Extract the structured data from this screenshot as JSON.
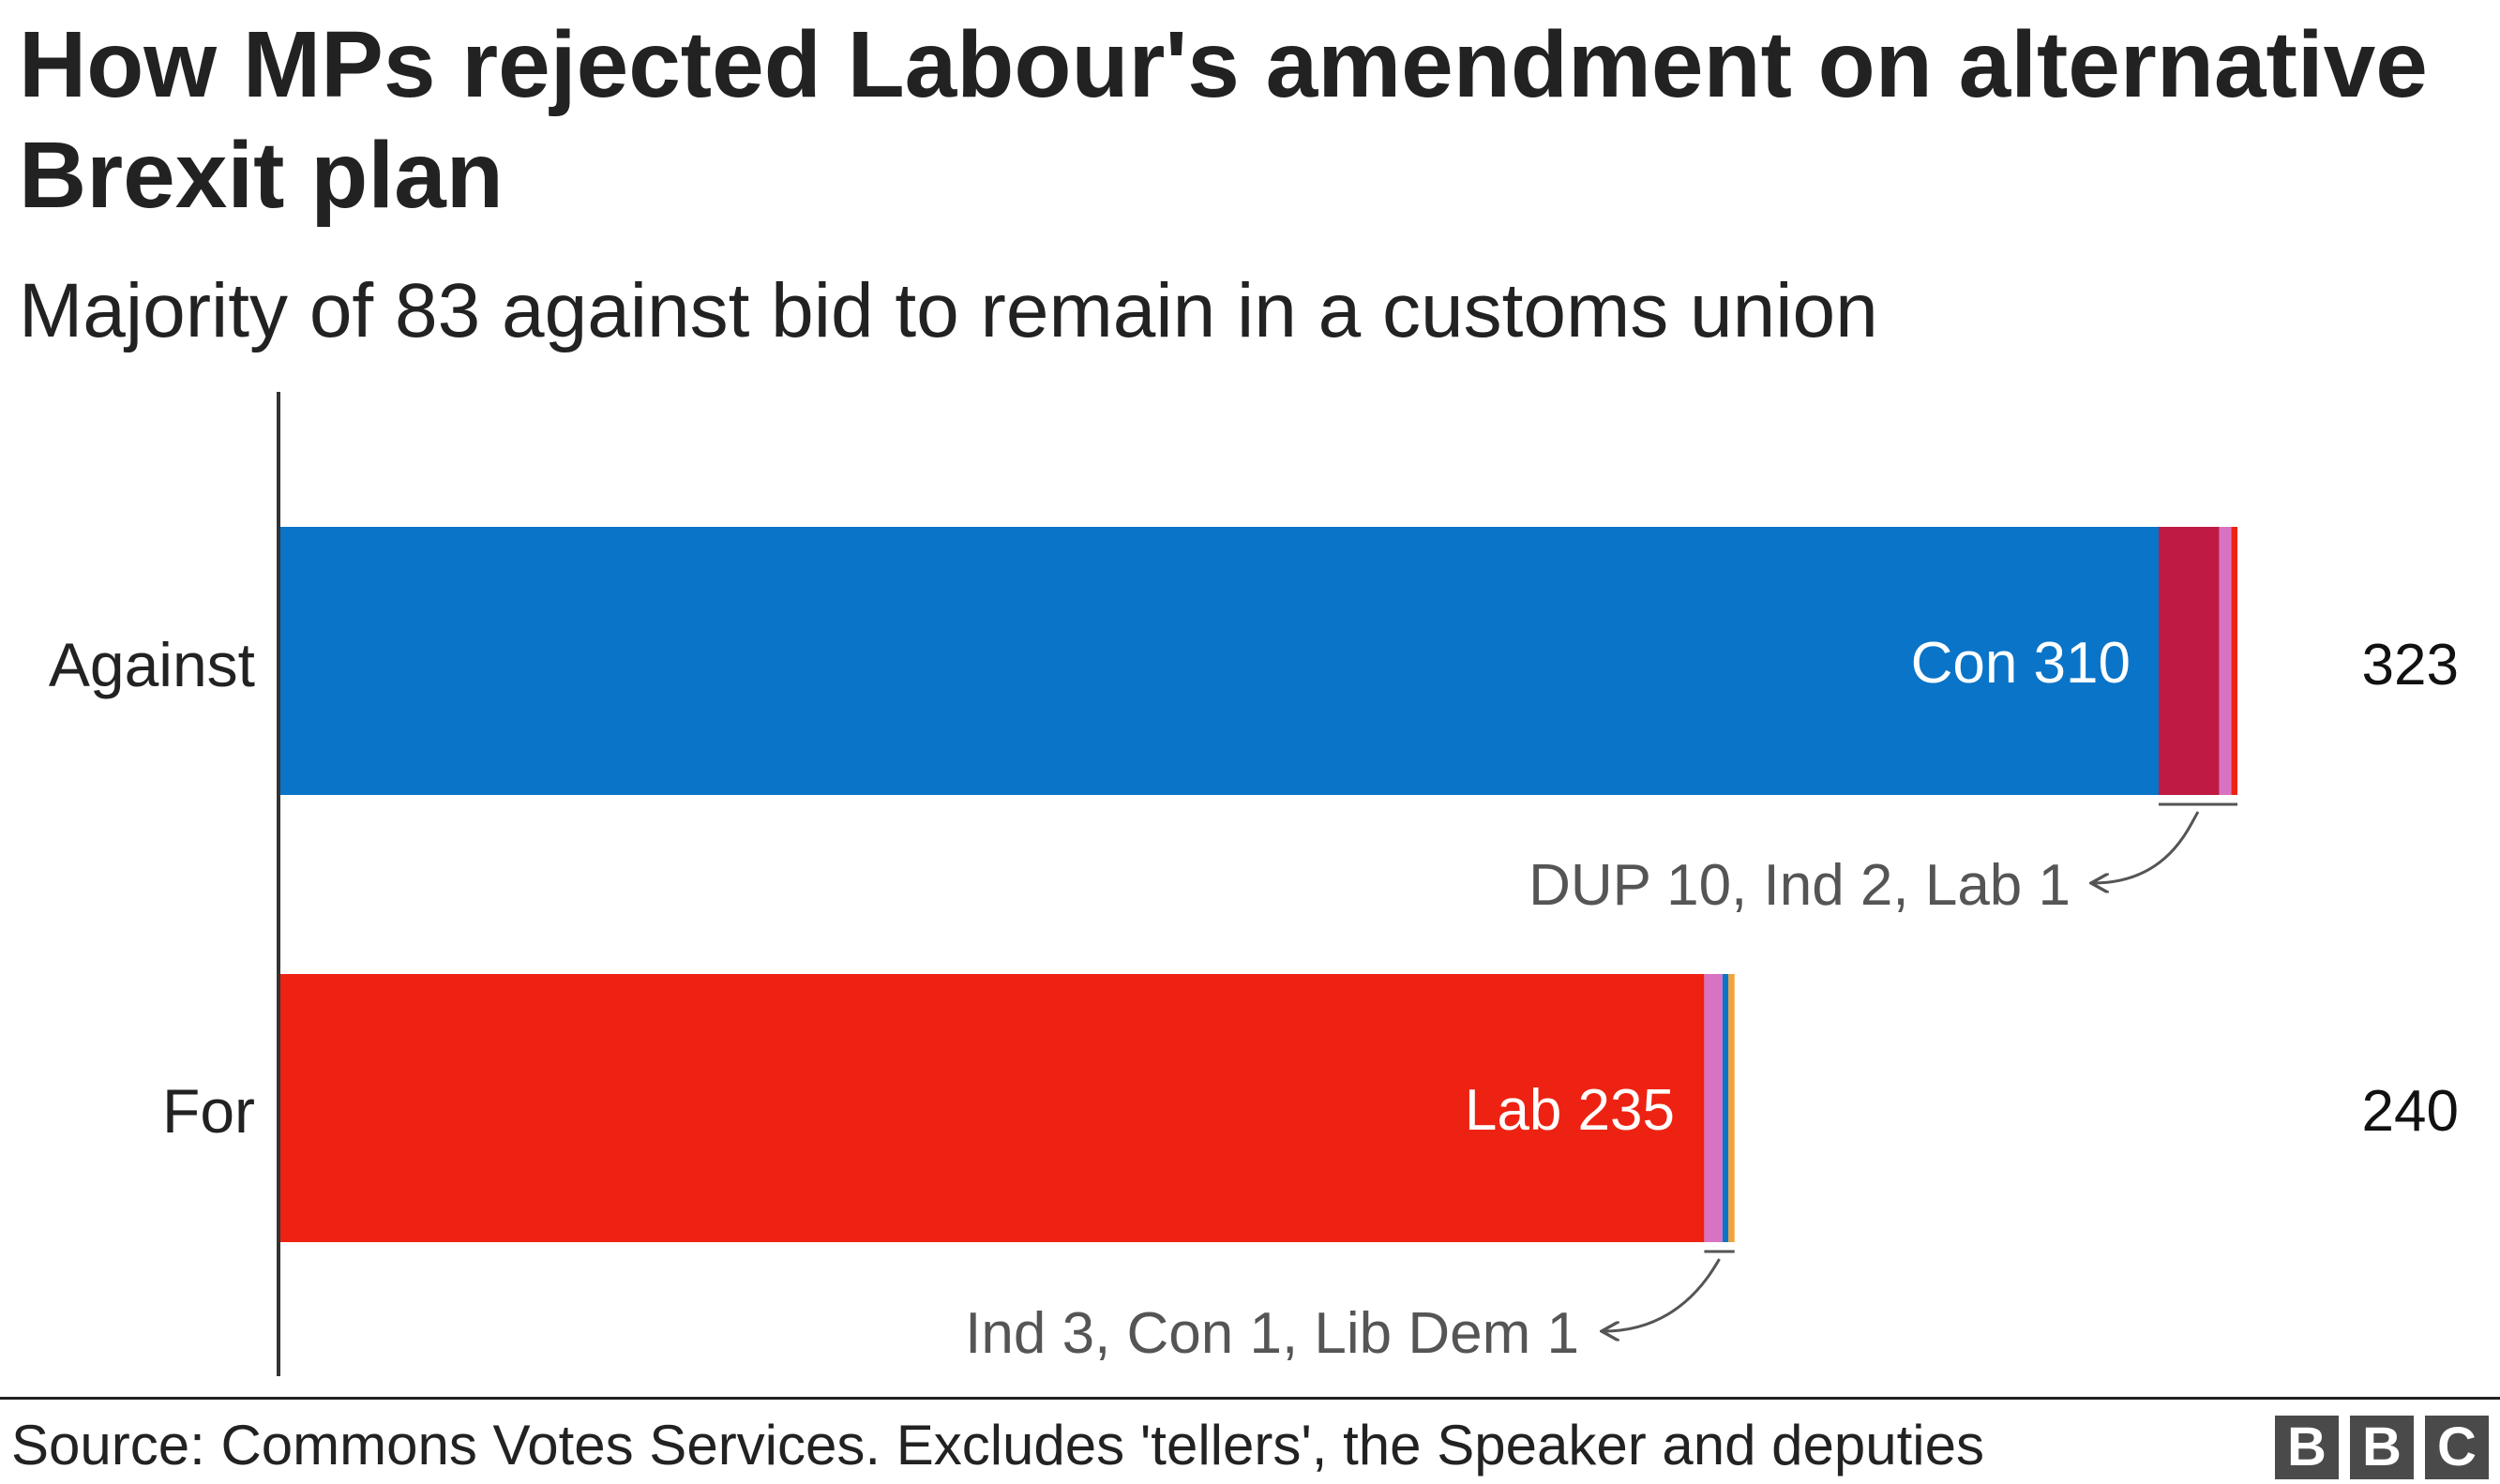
{
  "title": "How MPs rejected Labour's amendment on alternative Brexit plan",
  "subtitle": "Majority of 83 against bid to remain in a customs union",
  "source": "Source: Commons Votes Services. Excludes 'tellers', the Speaker and deputies",
  "logo": [
    "B",
    "B",
    "C"
  ],
  "colors": {
    "con": "#0a74c8",
    "lab": "#ee2212",
    "dup": "#bf1a43",
    "ind": "#d873c3",
    "libdem": "#f0a33a",
    "text": "#222222",
    "annotation": "#555555"
  },
  "chart_data": {
    "type": "bar",
    "orientation": "horizontal",
    "stacked": true,
    "categories": [
      "Against",
      "For"
    ],
    "totals": [
      "323",
      "240"
    ],
    "series": [
      {
        "name": "Con",
        "values": [
          310,
          1
        ],
        "color": "#0a74c8"
      },
      {
        "name": "DUP",
        "values": [
          10,
          0
        ],
        "color": "#bf1a43"
      },
      {
        "name": "Ind",
        "values": [
          2,
          3
        ],
        "color": "#d873c3"
      },
      {
        "name": "Lab",
        "values": [
          1,
          235
        ],
        "color": "#ee2212"
      },
      {
        "name": "Lib Dem",
        "values": [
          0,
          1
        ],
        "color": "#f0a33a"
      }
    ],
    "bar_segments": [
      [
        {
          "party": "Con",
          "value": 310,
          "color": "#0a74c8"
        },
        {
          "party": "DUP",
          "value": 10,
          "color": "#bf1a43"
        },
        {
          "party": "Ind",
          "value": 2,
          "color": "#d873c3"
        },
        {
          "party": "Lab",
          "value": 1,
          "color": "#ee2212"
        }
      ],
      [
        {
          "party": "Lab",
          "value": 235,
          "color": "#ee2212"
        },
        {
          "party": "Ind",
          "value": 3,
          "color": "#d873c3"
        },
        {
          "party": "Con",
          "value": 1,
          "color": "#0a74c8"
        },
        {
          "party": "Lib Dem",
          "value": 1,
          "color": "#f0a33a"
        }
      ]
    ],
    "inner_labels": [
      "Con 310",
      "Lab 235"
    ],
    "annotations": [
      "DUP 10, Ind 2, Lab 1",
      "Ind 3, Con 1, Lib Dem 1"
    ],
    "xlim": [
      0,
      323
    ],
    "grid": false,
    "legend": "none"
  }
}
